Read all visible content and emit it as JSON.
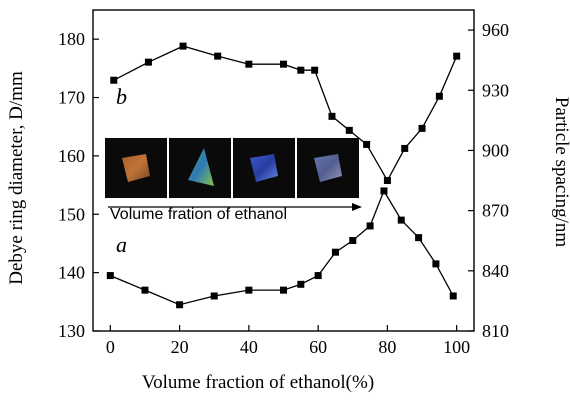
{
  "chart_data": {
    "type": "line",
    "xlabel": "Volume fraction of ethanol(%)",
    "ylabel_left": "Debye ring diameter, D/mm",
    "ylabel_right": "Particle spacing/nm",
    "xlim": [
      -5,
      105
    ],
    "ylim_left": [
      130,
      185
    ],
    "ylim_right": [
      810,
      970
    ],
    "xticks": [
      0,
      20,
      40,
      60,
      80,
      100
    ],
    "yticks_left": [
      130,
      140,
      150,
      160,
      170,
      180
    ],
    "yticks_right": [
      810,
      840,
      870,
      900,
      930,
      960
    ],
    "grid": false,
    "series": [
      {
        "name": "a",
        "axis": "left",
        "x": [
          0,
          10,
          20,
          30,
          40,
          50,
          55,
          60,
          65,
          70,
          75,
          79,
          84,
          89,
          94,
          99
        ],
        "y": [
          139.5,
          137,
          134.5,
          136,
          137,
          137,
          138,
          139.5,
          143.5,
          145.5,
          148,
          154,
          149,
          146,
          141.5,
          136
        ]
      },
      {
        "name": "b",
        "axis": "right",
        "x": [
          1,
          11,
          21,
          31,
          40,
          50,
          55,
          59,
          64,
          69,
          74,
          80,
          85,
          90,
          95,
          100
        ],
        "y": [
          935,
          944,
          952,
          947,
          943,
          943,
          940,
          940,
          917,
          910,
          903,
          885,
          901,
          911,
          927,
          947
        ]
      }
    ],
    "inset": {
      "caption": "Volume fration of ethanol",
      "photos": [
        {
          "name": "sample-1",
          "colors": [
            "#b3602a",
            "#c87a3a",
            "#7a4a2a"
          ]
        },
        {
          "name": "sample-2",
          "colors": [
            "#3fb36a",
            "#2f7fc0",
            "#8fcf4a"
          ]
        },
        {
          "name": "sample-3",
          "colors": [
            "#3a5fd8",
            "#2a3fa8",
            "#6a8ff0"
          ]
        },
        {
          "name": "sample-4",
          "colors": [
            "#8a9ae0",
            "#6a7ac0",
            "#c0c8f0"
          ]
        }
      ]
    }
  }
}
